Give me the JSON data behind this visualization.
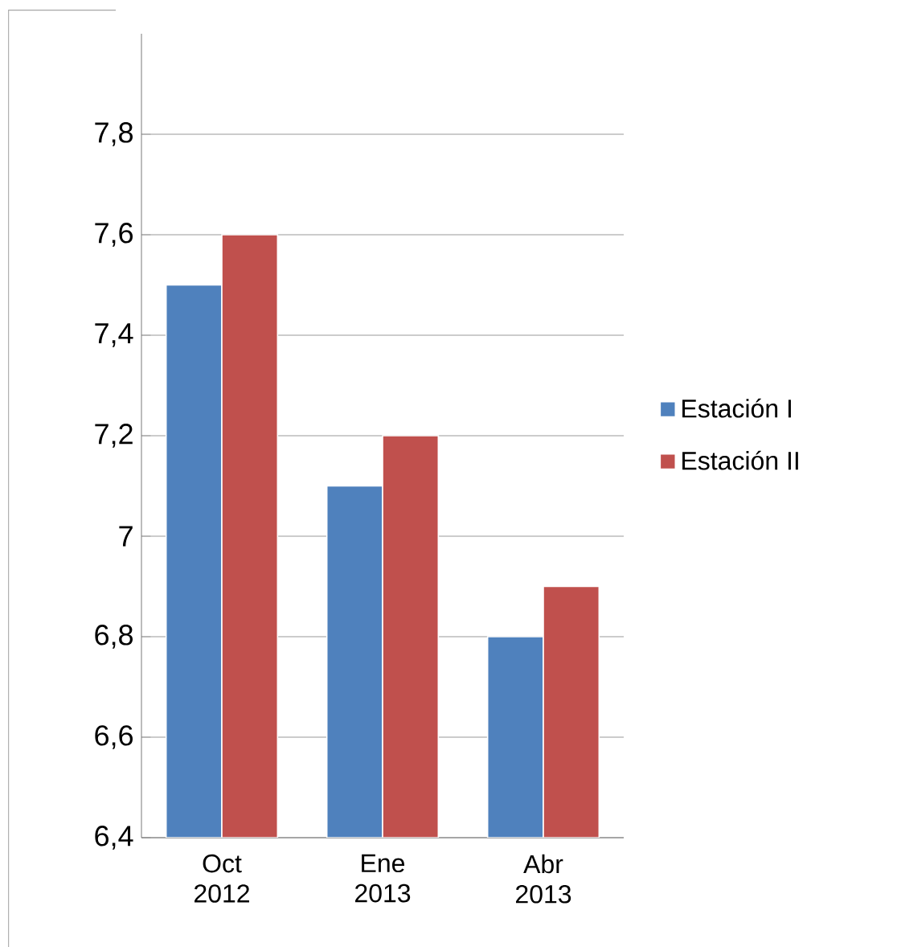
{
  "chart_data": {
    "type": "bar",
    "categories": [
      "Oct 2012",
      "Ene 2013",
      "Abr 2013"
    ],
    "series": [
      {
        "name": "Estación I",
        "color": "#4f81bd",
        "values": [
          7.5,
          7.1,
          6.8
        ]
      },
      {
        "name": "Estación II",
        "color": "#c0504d",
        "values": [
          7.6,
          7.2,
          6.9
        ]
      }
    ],
    "ylim": [
      6.4,
      8.0
    ],
    "yticks": [
      {
        "value": 6.4,
        "label": "6,4"
      },
      {
        "value": 6.6,
        "label": "6,6"
      },
      {
        "value": 6.8,
        "label": "6,8"
      },
      {
        "value": 7,
        "label": "7"
      },
      {
        "value": 7.2,
        "label": "7,2"
      },
      {
        "value": 7.4,
        "label": "7,4"
      },
      {
        "value": 7.6,
        "label": "7,6"
      },
      {
        "value": 7.8,
        "label": "7,8"
      }
    ],
    "grid": "y",
    "legend": "right"
  }
}
